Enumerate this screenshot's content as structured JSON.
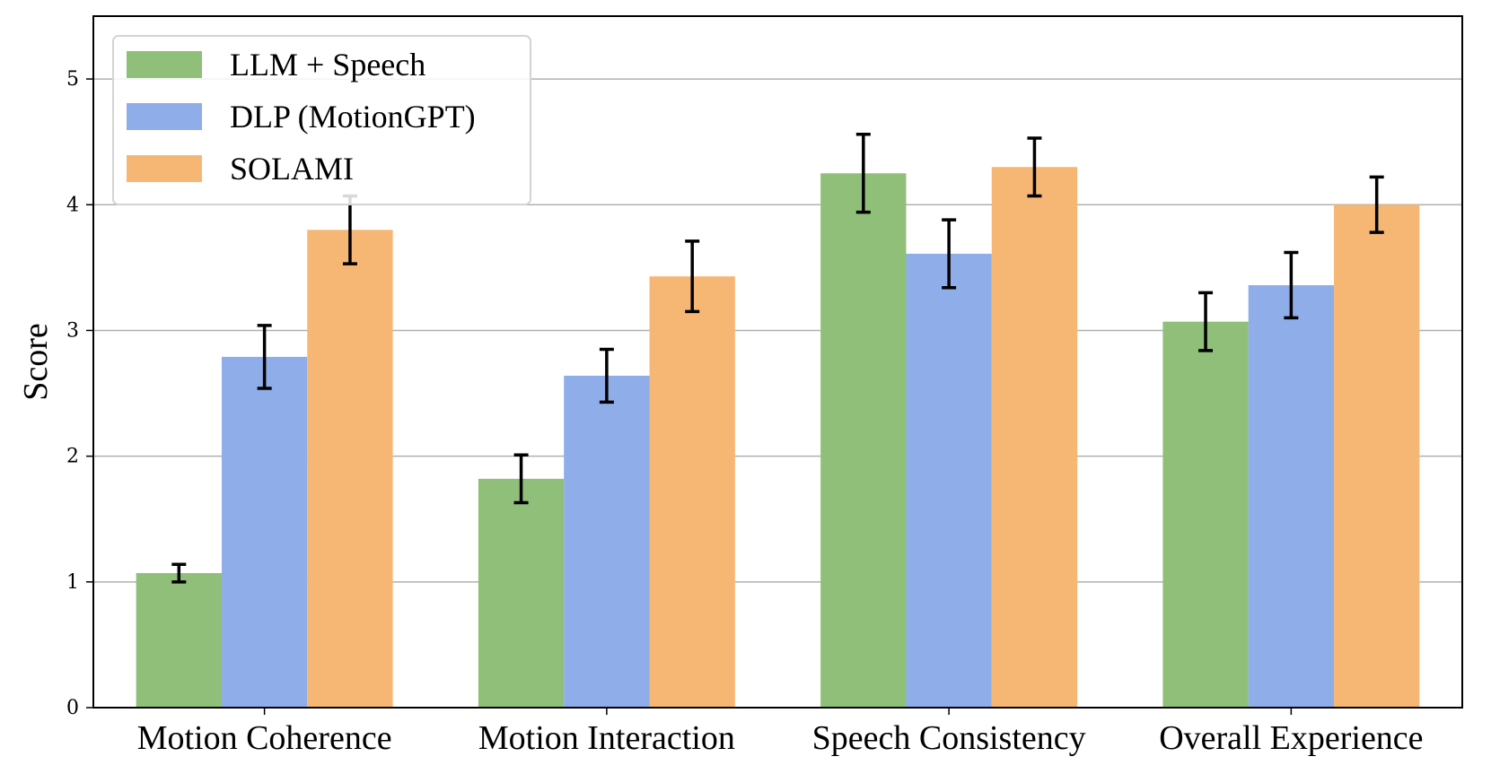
{
  "chart_data": {
    "type": "bar",
    "title": "",
    "xlabel": "",
    "ylabel": "Score",
    "ylim": [
      0,
      5.5
    ],
    "yticks": [
      "0",
      "1",
      "2",
      "3",
      "4",
      "5"
    ],
    "grid": "y",
    "legend_position": "top-left",
    "categories": [
      "Motion Coherence",
      "Motion Interaction",
      "Speech Consistency",
      "Overall Experience"
    ],
    "series": [
      {
        "name": "LLM + Speech",
        "color": "#8fbf79",
        "values": [
          1.07,
          1.82,
          4.25,
          3.07
        ],
        "errors": [
          0.07,
          0.19,
          0.31,
          0.23
        ]
      },
      {
        "name": "DLP (MotionGPT)",
        "color": "#8eade9",
        "values": [
          2.79,
          2.64,
          3.61,
          3.36
        ],
        "errors": [
          0.25,
          0.21,
          0.27,
          0.26
        ]
      },
      {
        "name": "SOLAMI",
        "color": "#f6b775",
        "values": [
          3.8,
          3.43,
          4.3,
          4.0
        ],
        "errors": [
          0.27,
          0.28,
          0.23,
          0.22
        ]
      }
    ]
  }
}
